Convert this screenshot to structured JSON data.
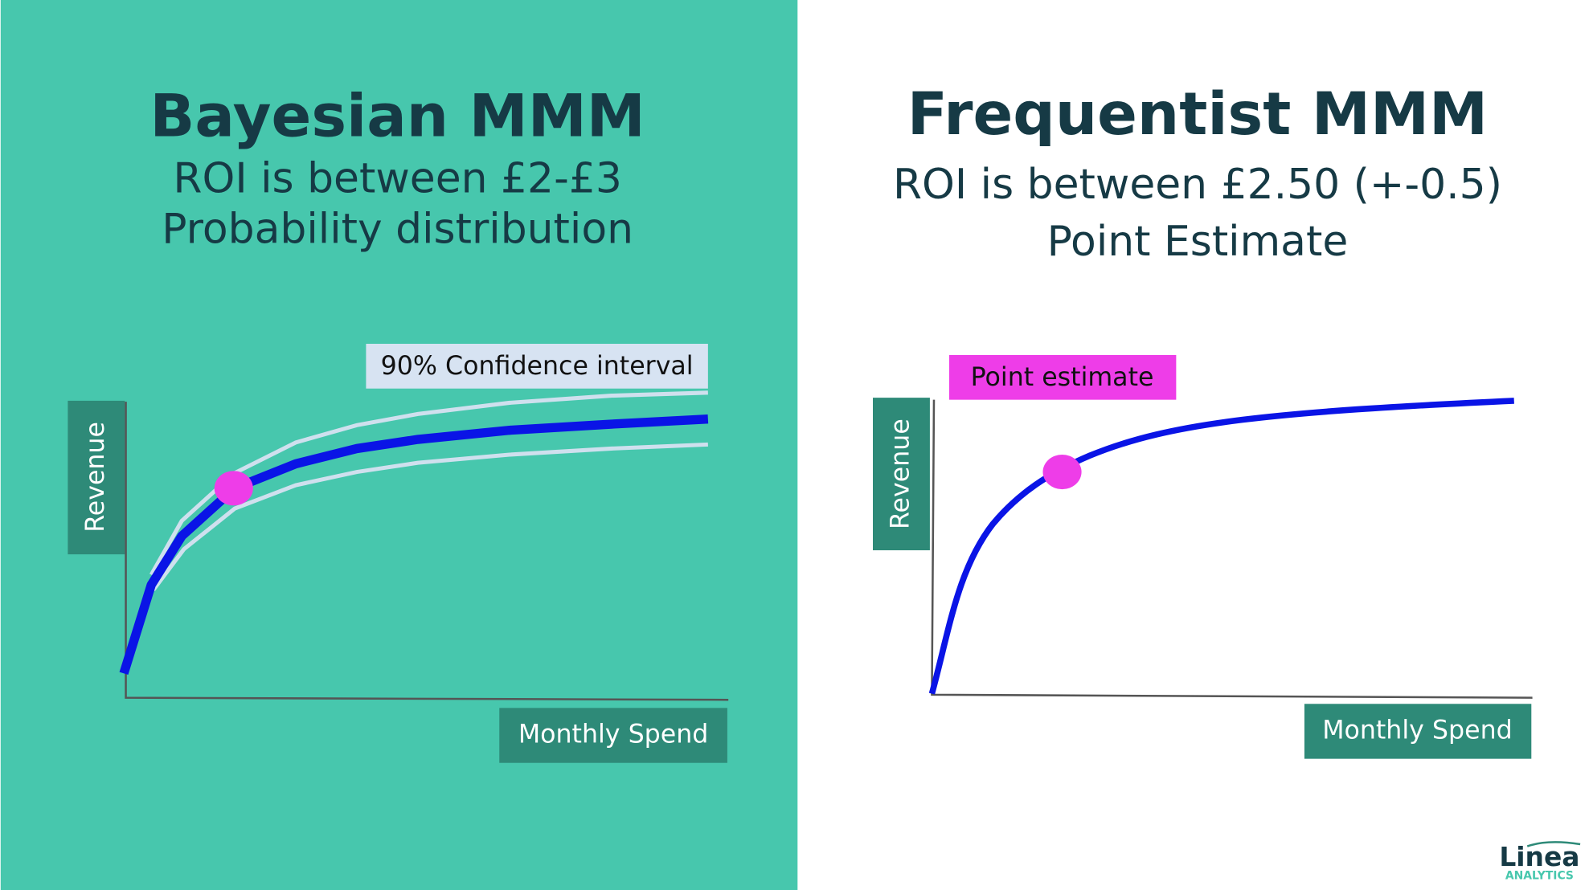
{
  "left": {
    "title": "Bayesian MMM",
    "subtitle": [
      "ROI is between £2-£3",
      "Probability distribution"
    ],
    "annotation": "90% Confidence interval",
    "y_label": "Revenue",
    "x_label": "Monthly Spend"
  },
  "right": {
    "title": "Frequentist MMM",
    "subtitle": [
      "ROI is between £2.50 (+-0.5)",
      "Point Estimate"
    ],
    "annotation": "Point estimate",
    "y_label": "Revenue",
    "x_label": "Monthly Spend"
  },
  "logo": {
    "name": "Linea",
    "tagline": "ANALYTICS"
  }
}
